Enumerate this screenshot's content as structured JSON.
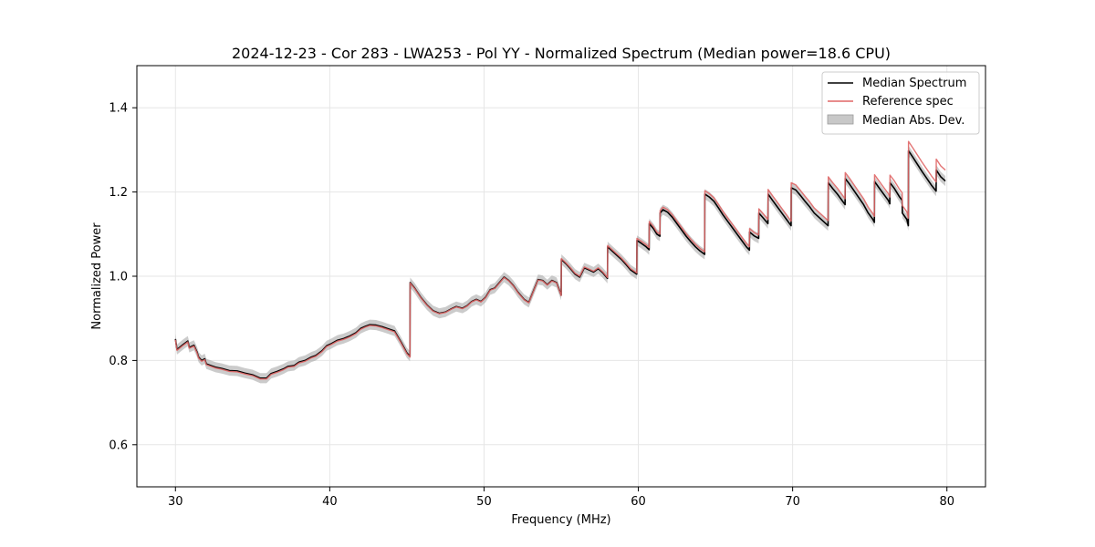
{
  "chart_data": {
    "type": "line",
    "title": "2024-12-23 - Cor 283 - LWA253 - Pol YY - Normalized Spectrum (Median power=18.6 CPU)",
    "xlabel": "Frequency (MHz)",
    "ylabel": "Normalized Power",
    "xlim": [
      27.5,
      82.5
    ],
    "ylim": [
      0.5,
      1.5
    ],
    "xticks": [
      30,
      40,
      50,
      60,
      70,
      80
    ],
    "yticks": [
      0.6,
      0.8,
      1.0,
      1.2,
      1.4
    ],
    "xtick_labels": [
      "30",
      "40",
      "50",
      "60",
      "70",
      "80"
    ],
    "ytick_labels": [
      "0.6",
      "0.8",
      "1.0",
      "1.2",
      "1.4"
    ],
    "grid": true,
    "legend_position": "top-right",
    "legend": [
      "Median Spectrum",
      "Reference spec",
      "Median Abs. Dev."
    ],
    "mad_halfwidth": 0.012,
    "series": [
      {
        "name": "Median Spectrum",
        "color": "#000000",
        "x": [
          30.0,
          30.1,
          30.5,
          30.8,
          30.9,
          31.2,
          31.4,
          31.5,
          31.7,
          31.9,
          32.0,
          32.3,
          32.6,
          33.0,
          33.5,
          34.0,
          34.5,
          35.0,
          35.5,
          35.9,
          36.2,
          36.6,
          37.0,
          37.3,
          37.7,
          38.0,
          38.4,
          38.8,
          39.1,
          39.5,
          39.8,
          40.1,
          40.5,
          40.9,
          41.3,
          41.7,
          42.0,
          42.3,
          42.6,
          43.0,
          43.4,
          43.8,
          44.2,
          44.6,
          45.0,
          45.2,
          45.21,
          45.5,
          45.9,
          46.3,
          46.7,
          47.1,
          47.5,
          47.9,
          48.2,
          48.6,
          48.9,
          49.2,
          49.5,
          49.8,
          50.1,
          50.4,
          50.7,
          51.0,
          51.3,
          51.6,
          51.9,
          52.2,
          52.6,
          52.9,
          53.2,
          53.5,
          53.8,
          54.1,
          54.4,
          54.7,
          55.0,
          55.01,
          55.3,
          55.6,
          55.9,
          56.2,
          56.5,
          56.8,
          57.1,
          57.4,
          57.7,
          58.0,
          58.01,
          58.3,
          58.6,
          58.9,
          59.2,
          59.5,
          59.9,
          59.91,
          60.2,
          60.5,
          60.7,
          60.71,
          61.0,
          61.2,
          61.4,
          61.41,
          61.6,
          61.9,
          62.2,
          62.5,
          62.8,
          63.1,
          63.4,
          63.7,
          64.0,
          64.3,
          64.31,
          64.6,
          64.9,
          65.2,
          65.5,
          65.8,
          66.1,
          66.4,
          66.7,
          67.0,
          67.2,
          67.21,
          67.5,
          67.8,
          67.81,
          68.1,
          68.4,
          68.41,
          68.7,
          69.0,
          69.3,
          69.6,
          69.9,
          69.91,
          70.2,
          70.5,
          70.8,
          71.1,
          71.4,
          71.7,
          72.0,
          72.3,
          72.31,
          72.6,
          72.9,
          73.2,
          73.4,
          73.41,
          73.7,
          74.0,
          74.3,
          74.6,
          74.9,
          75.2,
          75.3,
          75.31,
          75.6,
          75.9,
          76.2,
          76.3,
          76.31,
          76.6,
          76.9,
          77.1,
          77.11,
          77.4,
          77.5,
          77.51,
          77.8,
          78.1,
          78.4,
          78.7,
          79.0,
          79.3,
          79.31,
          79.6,
          79.9
        ],
        "y": [
          0.851,
          0.826,
          0.838,
          0.846,
          0.831,
          0.836,
          0.82,
          0.808,
          0.8,
          0.804,
          0.792,
          0.788,
          0.784,
          0.781,
          0.776,
          0.775,
          0.77,
          0.766,
          0.758,
          0.758,
          0.769,
          0.774,
          0.78,
          0.786,
          0.788,
          0.796,
          0.8,
          0.808,
          0.812,
          0.823,
          0.835,
          0.84,
          0.848,
          0.852,
          0.858,
          0.866,
          0.876,
          0.881,
          0.885,
          0.884,
          0.88,
          0.875,
          0.87,
          0.845,
          0.818,
          0.81,
          0.985,
          0.972,
          0.95,
          0.932,
          0.918,
          0.912,
          0.915,
          0.923,
          0.928,
          0.924,
          0.93,
          0.94,
          0.945,
          0.94,
          0.95,
          0.968,
          0.972,
          0.985,
          0.998,
          0.99,
          0.978,
          0.962,
          0.945,
          0.938,
          0.965,
          0.992,
          0.99,
          0.98,
          0.99,
          0.985,
          0.955,
          1.04,
          1.03,
          1.018,
          1.005,
          0.998,
          1.02,
          1.015,
          1.01,
          1.018,
          1.008,
          0.995,
          1.07,
          1.06,
          1.05,
          1.04,
          1.028,
          1.015,
          1.005,
          1.085,
          1.078,
          1.07,
          1.063,
          1.125,
          1.112,
          1.1,
          1.095,
          1.15,
          1.158,
          1.152,
          1.14,
          1.125,
          1.11,
          1.095,
          1.082,
          1.07,
          1.06,
          1.052,
          1.195,
          1.188,
          1.178,
          1.162,
          1.145,
          1.13,
          1.115,
          1.1,
          1.085,
          1.07,
          1.062,
          1.105,
          1.096,
          1.09,
          1.15,
          1.138,
          1.125,
          1.195,
          1.18,
          1.165,
          1.15,
          1.135,
          1.12,
          1.21,
          1.205,
          1.192,
          1.178,
          1.165,
          1.15,
          1.14,
          1.13,
          1.12,
          1.222,
          1.208,
          1.195,
          1.18,
          1.17,
          1.232,
          1.218,
          1.202,
          1.186,
          1.17,
          1.15,
          1.135,
          1.128,
          1.225,
          1.21,
          1.195,
          1.18,
          1.172,
          1.222,
          1.208,
          1.19,
          1.18,
          1.15,
          1.135,
          1.12,
          1.298,
          1.282,
          1.265,
          1.248,
          1.232,
          1.216,
          1.202,
          1.252,
          1.236,
          1.226
        ]
      },
      {
        "name": "Reference spec",
        "color": "#e06666",
        "x": [
          30.0,
          30.1,
          30.5,
          30.8,
          30.9,
          31.2,
          31.4,
          31.5,
          31.7,
          31.9,
          32.0,
          32.3,
          32.6,
          33.0,
          33.5,
          34.0,
          34.5,
          35.0,
          35.5,
          35.9,
          36.2,
          36.6,
          37.0,
          37.3,
          37.7,
          38.0,
          38.4,
          38.8,
          39.1,
          39.5,
          39.8,
          40.1,
          40.5,
          40.9,
          41.3,
          41.7,
          42.0,
          42.3,
          42.6,
          43.0,
          43.4,
          43.8,
          44.2,
          44.6,
          45.0,
          45.2,
          45.21,
          45.5,
          45.9,
          46.3,
          46.7,
          47.1,
          47.5,
          47.9,
          48.2,
          48.6,
          48.9,
          49.2,
          49.5,
          49.8,
          50.1,
          50.4,
          50.7,
          51.0,
          51.3,
          51.6,
          51.9,
          52.2,
          52.6,
          52.9,
          53.2,
          53.5,
          53.8,
          54.1,
          54.4,
          54.7,
          55.0,
          55.01,
          55.3,
          55.6,
          55.9,
          56.2,
          56.5,
          56.8,
          57.1,
          57.4,
          57.7,
          58.0,
          58.01,
          58.3,
          58.6,
          58.9,
          59.2,
          59.5,
          59.9,
          59.91,
          60.2,
          60.5,
          60.7,
          60.71,
          61.0,
          61.2,
          61.4,
          61.41,
          61.6,
          61.9,
          62.2,
          62.5,
          62.8,
          63.1,
          63.4,
          63.7,
          64.0,
          64.3,
          64.31,
          64.6,
          64.9,
          65.2,
          65.5,
          65.8,
          66.1,
          66.4,
          66.7,
          67.0,
          67.2,
          67.21,
          67.5,
          67.8,
          67.81,
          68.1,
          68.4,
          68.41,
          68.7,
          69.0,
          69.3,
          69.6,
          69.9,
          69.91,
          70.2,
          70.5,
          70.8,
          71.1,
          71.4,
          71.7,
          72.0,
          72.3,
          72.31,
          72.6,
          72.9,
          73.2,
          73.4,
          73.41,
          73.7,
          74.0,
          74.3,
          74.6,
          74.9,
          75.2,
          75.3,
          75.31,
          75.6,
          75.9,
          76.2,
          76.3,
          76.31,
          76.6,
          76.9,
          77.1,
          77.11,
          77.4,
          77.5,
          77.51,
          77.8,
          78.1,
          78.4,
          78.7,
          79.0,
          79.3,
          79.31,
          79.6,
          79.9
        ],
        "y": [
          0.849,
          0.824,
          0.836,
          0.844,
          0.829,
          0.834,
          0.818,
          0.806,
          0.798,
          0.802,
          0.79,
          0.786,
          0.782,
          0.779,
          0.774,
          0.773,
          0.768,
          0.764,
          0.756,
          0.756,
          0.767,
          0.772,
          0.778,
          0.784,
          0.786,
          0.794,
          0.798,
          0.806,
          0.81,
          0.821,
          0.833,
          0.838,
          0.846,
          0.85,
          0.856,
          0.864,
          0.874,
          0.879,
          0.883,
          0.882,
          0.878,
          0.873,
          0.868,
          0.843,
          0.816,
          0.808,
          0.984,
          0.971,
          0.949,
          0.931,
          0.917,
          0.911,
          0.914,
          0.922,
          0.927,
          0.923,
          0.929,
          0.939,
          0.944,
          0.939,
          0.949,
          0.967,
          0.971,
          0.984,
          0.997,
          0.989,
          0.977,
          0.961,
          0.944,
          0.937,
          0.964,
          0.991,
          0.989,
          0.979,
          0.989,
          0.984,
          0.954,
          1.042,
          1.032,
          1.02,
          1.007,
          1.0,
          1.022,
          1.017,
          1.012,
          1.02,
          1.01,
          0.997,
          1.073,
          1.063,
          1.053,
          1.043,
          1.031,
          1.018,
          1.008,
          1.09,
          1.083,
          1.075,
          1.068,
          1.13,
          1.117,
          1.105,
          1.1,
          1.156,
          1.164,
          1.158,
          1.146,
          1.131,
          1.116,
          1.101,
          1.088,
          1.076,
          1.066,
          1.058,
          1.203,
          1.196,
          1.186,
          1.17,
          1.153,
          1.138,
          1.123,
          1.108,
          1.093,
          1.078,
          1.07,
          1.113,
          1.104,
          1.098,
          1.16,
          1.148,
          1.135,
          1.206,
          1.191,
          1.176,
          1.161,
          1.146,
          1.131,
          1.222,
          1.217,
          1.204,
          1.19,
          1.177,
          1.162,
          1.152,
          1.142,
          1.132,
          1.236,
          1.222,
          1.209,
          1.194,
          1.184,
          1.246,
          1.232,
          1.216,
          1.2,
          1.184,
          1.164,
          1.149,
          1.142,
          1.241,
          1.226,
          1.211,
          1.196,
          1.188,
          1.24,
          1.226,
          1.208,
          1.198,
          1.168,
          1.153,
          1.138,
          1.32,
          1.304,
          1.287,
          1.27,
          1.254,
          1.238,
          1.224,
          1.278,
          1.262,
          1.252
        ]
      }
    ]
  }
}
